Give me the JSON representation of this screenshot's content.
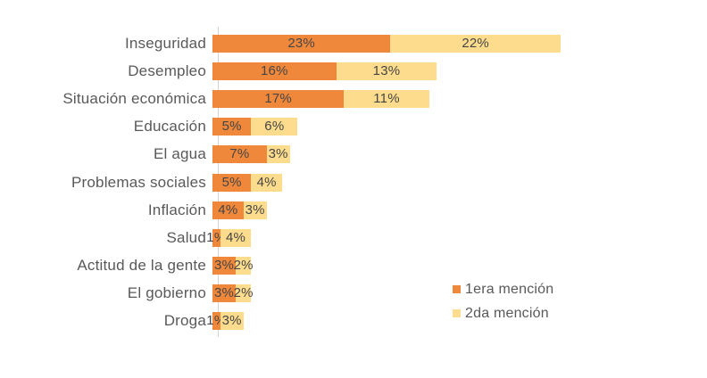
{
  "chart_data": {
    "type": "bar",
    "orientation": "horizontal",
    "stacked": true,
    "title": "",
    "categories": [
      "Inseguridad",
      "Desempleo",
      "Situación económica",
      "Educación",
      "El agua",
      "Problemas sociales",
      "Inflación",
      "Salud",
      "Actitud de la gente",
      "El gobierno",
      "Droga"
    ],
    "series": [
      {
        "name": "1era mención",
        "color": "#F0883C",
        "values": [
          23,
          16,
          17,
          5,
          7,
          5,
          4,
          1,
          3,
          3,
          1
        ]
      },
      {
        "name": "2da mención",
        "color": "#FDDD8D",
        "values": [
          22,
          13,
          11,
          6,
          3,
          4,
          3,
          4,
          2,
          2,
          3
        ]
      }
    ],
    "value_suffix": "%",
    "xlim": [
      0,
      45
    ],
    "gridlines": false,
    "legend_position": "right-middle",
    "axis_line_color": "#D3D3D3",
    "category_label_color": "#595959",
    "value_label_color": "#454545",
    "background_color": "#FFFFFF"
  }
}
